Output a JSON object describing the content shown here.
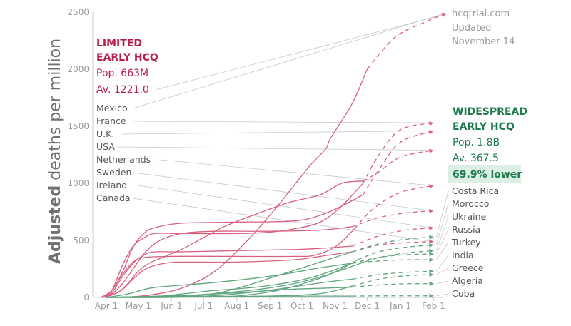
{
  "chart_data": {
    "type": "line",
    "ylabel_bold": "Adjusted",
    "ylabel_rest": " deaths per million",
    "ylim": [
      0,
      2500
    ],
    "yticks": [
      0,
      500,
      1000,
      1500,
      2000,
      2500
    ],
    "x_ticks": [
      {
        "label": "Apr 1",
        "day": 0
      },
      {
        "label": "May 1",
        "day": 30
      },
      {
        "label": "Jun 1",
        "day": 61
      },
      {
        "label": "Jul 1",
        "day": 91
      },
      {
        "label": "Aug 1",
        "day": 122
      },
      {
        "label": "Sep 1",
        "day": 153
      },
      {
        "label": "Oct 1",
        "day": 183
      },
      {
        "label": "Nov 1",
        "day": 214
      },
      {
        "label": "Dec 1",
        "day": 244
      },
      {
        "label": "Jan 1",
        "day": 275
      },
      {
        "label": "Feb 1",
        "day": 306
      }
    ],
    "groups": {
      "limited": {
        "title_line1": "LIMITED",
        "title_line2": "EARLY HCQ",
        "pop": "Pop. 663M",
        "avg": "Av. 1221.0",
        "color": "#d95f7f"
      },
      "widespread": {
        "title_line1": "WIDESPREAD",
        "title_line2": "EARLY HCQ",
        "pop": "Pop. 1.8B",
        "avg": "Av. 367.5",
        "lower": "69.9% lower",
        "color": "#5fa57d"
      }
    },
    "series": [
      {
        "name": "Mexico",
        "group": "limited",
        "points": [
          [
            14,
            0
          ],
          [
            40,
            20
          ],
          [
            70,
            80
          ],
          [
            100,
            220
          ],
          [
            130,
            480
          ],
          [
            160,
            800
          ],
          [
            190,
            1150
          ],
          [
            205,
            1300
          ],
          [
            210,
            1400
          ],
          [
            230,
            1700
          ],
          [
            244,
            2000
          ]
        ],
        "projected": [
          [
            244,
            2000
          ],
          [
            270,
            2280
          ],
          [
            300,
            2420
          ],
          [
            318,
            2490
          ]
        ]
      },
      {
        "name": "France",
        "group": "limited",
        "points": [
          [
            -5,
            0
          ],
          [
            5,
            60
          ],
          [
            15,
            280
          ],
          [
            25,
            450
          ],
          [
            35,
            520
          ],
          [
            45,
            560
          ],
          [
            70,
            560
          ],
          [
            120,
            560
          ],
          [
            150,
            570
          ],
          [
            175,
            600
          ],
          [
            200,
            660
          ],
          [
            220,
            800
          ],
          [
            240,
            1000
          ]
        ],
        "projected": [
          [
            240,
            1000
          ],
          [
            255,
            1250
          ],
          [
            275,
            1470
          ],
          [
            306,
            1530
          ]
        ]
      },
      {
        "name": "U.K.",
        "group": "limited",
        "points": [
          [
            -5,
            0
          ],
          [
            5,
            60
          ],
          [
            15,
            220
          ],
          [
            25,
            440
          ],
          [
            35,
            560
          ],
          [
            45,
            610
          ],
          [
            70,
            650
          ],
          [
            120,
            660
          ],
          [
            175,
            670
          ],
          [
            200,
            720
          ],
          [
            220,
            800
          ],
          [
            240,
            900
          ]
        ],
        "projected": [
          [
            240,
            900
          ],
          [
            255,
            1120
          ],
          [
            275,
            1360
          ],
          [
            306,
            1460
          ]
        ]
      },
      {
        "name": "USA",
        "group": "limited",
        "points": [
          [
            -5,
            0
          ],
          [
            10,
            40
          ],
          [
            20,
            120
          ],
          [
            30,
            230
          ],
          [
            40,
            300
          ],
          [
            50,
            340
          ],
          [
            70,
            420
          ],
          [
            90,
            520
          ],
          [
            110,
            620
          ],
          [
            140,
            730
          ],
          [
            170,
            830
          ],
          [
            200,
            900
          ],
          [
            220,
            1000
          ],
          [
            240,
            1020
          ]
        ],
        "projected": [
          [
            240,
            1020
          ],
          [
            255,
            1100
          ],
          [
            275,
            1230
          ],
          [
            306,
            1290
          ]
        ]
      },
      {
        "name": "Netherlands",
        "group": "limited",
        "points": [
          [
            -5,
            0
          ],
          [
            5,
            60
          ],
          [
            15,
            200
          ],
          [
            25,
            310
          ],
          [
            35,
            350
          ],
          [
            60,
            360
          ],
          [
            120,
            360
          ],
          [
            175,
            360
          ],
          [
            195,
            370
          ],
          [
            215,
            450
          ],
          [
            232,
            600
          ]
        ],
        "projected": [
          [
            232,
            600
          ],
          [
            250,
            780
          ],
          [
            275,
            920
          ],
          [
            306,
            980
          ]
        ]
      },
      {
        "name": "Sweden",
        "group": "limited",
        "points": [
          [
            -5,
            0
          ],
          [
            5,
            30
          ],
          [
            15,
            120
          ],
          [
            25,
            250
          ],
          [
            35,
            380
          ],
          [
            45,
            470
          ],
          [
            55,
            520
          ],
          [
            70,
            560
          ],
          [
            100,
            580
          ],
          [
            150,
            580
          ],
          [
            200,
            590
          ],
          [
            230,
            620
          ]
        ],
        "projected": [
          [
            230,
            620
          ],
          [
            255,
            700
          ],
          [
            280,
            740
          ],
          [
            306,
            760
          ]
        ]
      },
      {
        "name": "Ireland",
        "group": "limited",
        "points": [
          [
            -5,
            0
          ],
          [
            5,
            40
          ],
          [
            15,
            180
          ],
          [
            25,
            300
          ],
          [
            35,
            370
          ],
          [
            45,
            400
          ],
          [
            70,
            400
          ],
          [
            120,
            410
          ],
          [
            175,
            420
          ],
          [
            200,
            430
          ],
          [
            230,
            450
          ]
        ],
        "projected": [
          [
            230,
            450
          ],
          [
            255,
            540
          ],
          [
            280,
            590
          ],
          [
            306,
            610
          ]
        ]
      },
      {
        "name": "Canada",
        "group": "limited",
        "points": [
          [
            -5,
            0
          ],
          [
            5,
            20
          ],
          [
            15,
            70
          ],
          [
            25,
            160
          ],
          [
            35,
            240
          ],
          [
            45,
            280
          ],
          [
            55,
            300
          ],
          [
            70,
            310
          ],
          [
            120,
            310
          ],
          [
            175,
            330
          ],
          [
            200,
            360
          ],
          [
            230,
            400
          ]
        ],
        "projected": [
          [
            230,
            400
          ],
          [
            255,
            460
          ],
          [
            280,
            480
          ],
          [
            306,
            490
          ]
        ]
      },
      {
        "name": "Costa Rica",
        "group": "widespread",
        "points": [
          [
            0,
            0
          ],
          [
            60,
            0
          ],
          [
            90,
            20
          ],
          [
            110,
            50
          ],
          [
            130,
            100
          ],
          [
            150,
            160
          ],
          [
            170,
            220
          ],
          [
            190,
            280
          ],
          [
            210,
            340
          ],
          [
            230,
            400
          ]
        ],
        "projected": [
          [
            230,
            400
          ],
          [
            255,
            470
          ],
          [
            280,
            510
          ],
          [
            306,
            530
          ]
        ]
      },
      {
        "name": "Morocco",
        "group": "widespread",
        "points": [
          [
            0,
            0
          ],
          [
            100,
            5
          ],
          [
            130,
            20
          ],
          [
            160,
            60
          ],
          [
            180,
            110
          ],
          [
            200,
            170
          ],
          [
            220,
            250
          ],
          [
            235,
            330
          ]
        ],
        "projected": [
          [
            235,
            330
          ],
          [
            255,
            400
          ],
          [
            280,
            440
          ],
          [
            306,
            460
          ]
        ]
      },
      {
        "name": "Ukraine",
        "group": "widespread",
        "points": [
          [
            0,
            0
          ],
          [
            60,
            10
          ],
          [
            110,
            40
          ],
          [
            150,
            80
          ],
          [
            180,
            130
          ],
          [
            200,
            180
          ],
          [
            220,
            240
          ],
          [
            235,
            290
          ]
        ],
        "projected": [
          [
            235,
            290
          ],
          [
            255,
            350
          ],
          [
            280,
            390
          ],
          [
            306,
            410
          ]
        ]
      },
      {
        "name": "Russia",
        "group": "widespread",
        "points": [
          [
            0,
            0
          ],
          [
            40,
            5
          ],
          [
            60,
            20
          ],
          [
            80,
            40
          ],
          [
            100,
            60
          ],
          [
            140,
            90
          ],
          [
            170,
            130
          ],
          [
            190,
            170
          ],
          [
            210,
            230
          ],
          [
            230,
            300
          ]
        ],
        "projected": [
          [
            230,
            300
          ],
          [
            255,
            350
          ],
          [
            280,
            375
          ],
          [
            306,
            380
          ]
        ]
      },
      {
        "name": "Turkey",
        "group": "widespread",
        "points": [
          [
            0,
            0
          ],
          [
            20,
            30
          ],
          [
            40,
            80
          ],
          [
            60,
            100
          ],
          [
            100,
            130
          ],
          [
            140,
            170
          ],
          [
            170,
            210
          ],
          [
            200,
            260
          ],
          [
            230,
            300
          ]
        ],
        "projected": [
          [
            230,
            300
          ],
          [
            255,
            320
          ],
          [
            280,
            330
          ],
          [
            306,
            330
          ]
        ]
      },
      {
        "name": "India",
        "group": "widespread",
        "points": [
          [
            0,
            0
          ],
          [
            60,
            2
          ],
          [
            90,
            10
          ],
          [
            120,
            30
          ],
          [
            150,
            60
          ],
          [
            180,
            100
          ],
          [
            210,
            140
          ],
          [
            230,
            160
          ]
        ],
        "projected": [
          [
            230,
            160
          ],
          [
            255,
            200
          ],
          [
            280,
            220
          ],
          [
            306,
            230
          ]
        ]
      },
      {
        "name": "Greece",
        "group": "widespread",
        "points": [
          [
            0,
            0
          ],
          [
            40,
            8
          ],
          [
            100,
            10
          ],
          [
            150,
            12
          ],
          [
            190,
            25
          ],
          [
            210,
            50
          ],
          [
            230,
            100
          ]
        ],
        "projected": [
          [
            230,
            100
          ],
          [
            255,
            160
          ],
          [
            280,
            190
          ],
          [
            306,
            200
          ]
        ]
      },
      {
        "name": "Algeria",
        "group": "widespread",
        "points": [
          [
            0,
            0
          ],
          [
            40,
            10
          ],
          [
            80,
            20
          ],
          [
            120,
            40
          ],
          [
            170,
            70
          ],
          [
            200,
            80
          ],
          [
            230,
            90
          ]
        ],
        "projected": [
          [
            230,
            90
          ],
          [
            255,
            110
          ],
          [
            280,
            120
          ],
          [
            306,
            120
          ]
        ]
      },
      {
        "name": "Cuba",
        "group": "widespread",
        "points": [
          [
            0,
            0
          ],
          [
            40,
            5
          ],
          [
            100,
            8
          ],
          [
            150,
            10
          ],
          [
            200,
            12
          ],
          [
            230,
            12
          ]
        ],
        "projected": [
          [
            230,
            12
          ],
          [
            260,
            14
          ],
          [
            306,
            14
          ]
        ]
      }
    ],
    "source_line1": "hcqtrial.com",
    "source_line2": "Updated",
    "source_line3": "November 14",
    "colors": {
      "axis": "#cccccc",
      "tick": "#9a9a9a",
      "leader": "#c8c8c8",
      "highlight_bg": "#dcefe4"
    }
  }
}
